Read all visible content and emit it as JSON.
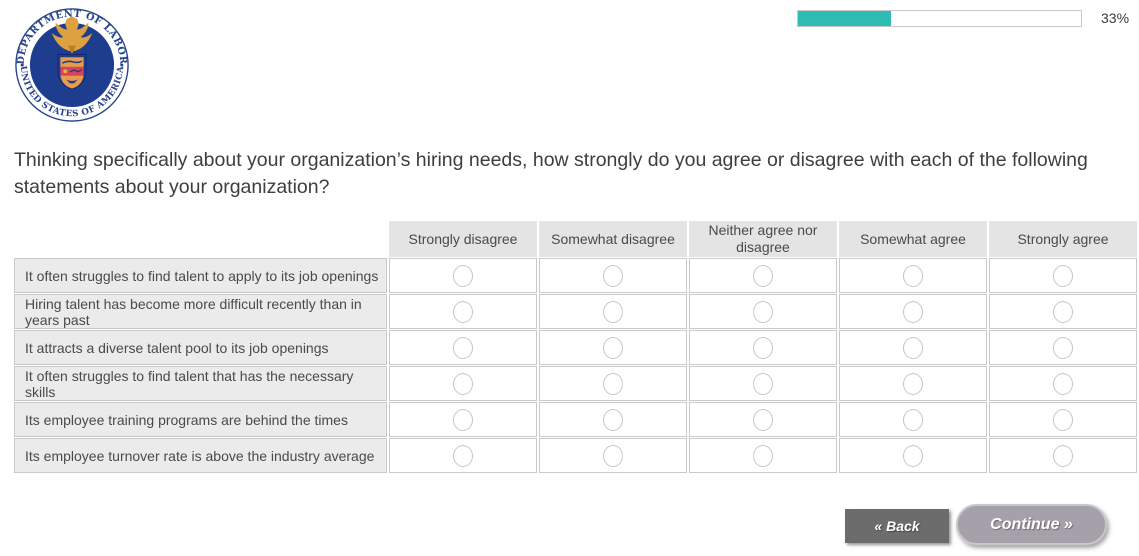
{
  "seal": {
    "top_text": "DEPARTMENT OF LABOR",
    "bottom_text": "UNITED STATES OF AMERICA"
  },
  "progress": {
    "percent": 33,
    "label": "33%"
  },
  "question": "Thinking specifically about your organization’s hiring needs, how strongly do you agree or disagree with each of the following statements about your organization?",
  "matrix": {
    "columns": [
      "Strongly disagree",
      "Somewhat disagree",
      "Neither agree nor disagree",
      "Somewhat agree",
      "Strongly agree"
    ],
    "rows": [
      "It often struggles to find talent to apply to its job openings",
      "Hiring talent has become more difficult recently than in years past",
      "It attracts a diverse talent pool to its job openings",
      "It often struggles to find talent that has the necessary skills",
      "Its employee training programs are behind the times",
      "Its employee turnover rate is above the industry average"
    ]
  },
  "buttons": {
    "back": "« Back",
    "continue": "Continue »"
  },
  "colors": {
    "progress_fill": "#2fbcb4",
    "seal_navy": "#1e3d8f",
    "back_button_bg": "#6c6c6c",
    "continue_button_bg": "#a5a1aa"
  }
}
